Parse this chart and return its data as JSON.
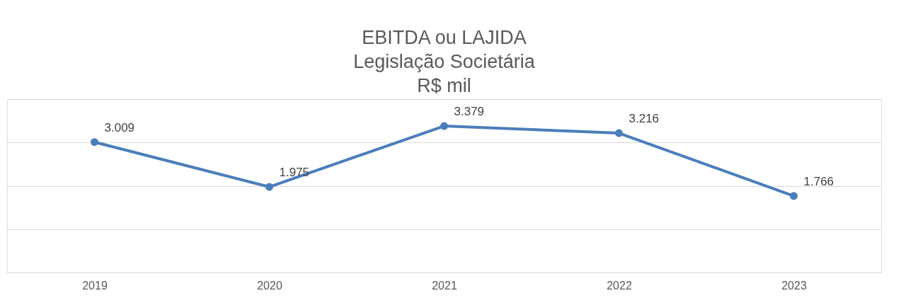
{
  "chart_data": {
    "type": "line",
    "title": "EBITDA ou LAJIDA\nLegislação Societária\nR$ mil",
    "categories": [
      "2019",
      "2020",
      "2021",
      "2022",
      "2023"
    ],
    "series": [
      {
        "color": "#4a7ebb",
        "values": [
          3009,
          1975,
          3379,
          3216,
          1766
        ],
        "value_labels": [
          "3.009",
          "1.975",
          "3.379",
          "3.216",
          "1.766"
        ]
      }
    ],
    "ylim": [
      0,
      4000
    ],
    "yticks": [
      {
        "value": 0,
        "label": null
      },
      {
        "value": 1000,
        "label": null
      },
      {
        "value": 2000,
        "label": null
      },
      {
        "value": 3000,
        "label": null
      },
      {
        "value": 4000,
        "label": null
      }
    ],
    "grid": "y",
    "tick_labels": "x",
    "marker": "circle",
    "line_style": "solid"
  }
}
